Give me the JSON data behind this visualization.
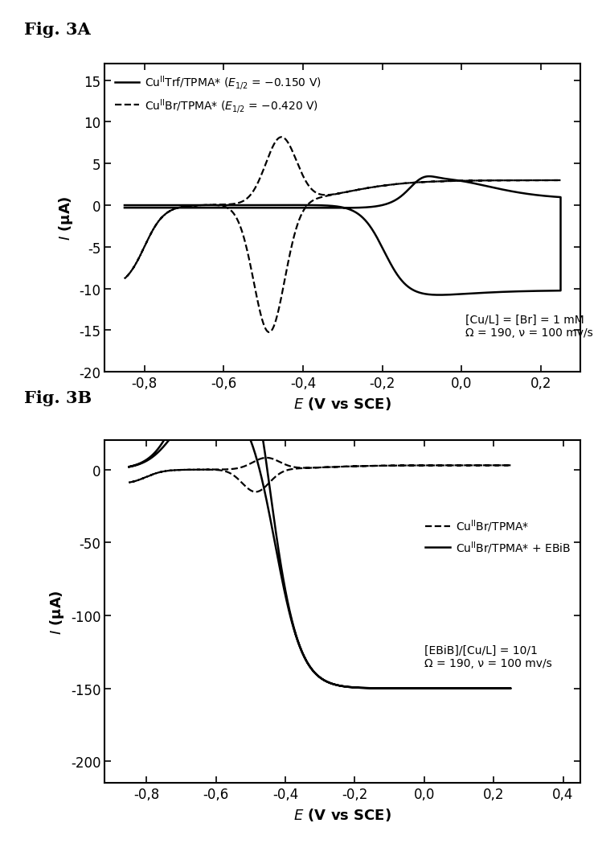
{
  "fig3A_label": "Fig. 3A",
  "fig3B_label": "Fig. 3B",
  "figA_xlabel": "E (V vs SCE)",
  "figA_ylabel": "I (μA)",
  "figB_xlabel": "E (V vs SCE)",
  "figB_ylabel": "I (μA)",
  "figA_xlim": [
    -0.9,
    0.3
  ],
  "figA_ylim": [
    -20,
    17
  ],
  "figB_xlim": [
    -0.92,
    0.45
  ],
  "figB_ylim": [
    -215,
    20
  ],
  "figA_xticks": [
    -0.8,
    -0.6,
    -0.4,
    -0.2,
    0.0,
    0.2
  ],
  "figA_yticks": [
    -20,
    -15,
    -10,
    -5,
    0,
    5,
    10,
    15
  ],
  "figB_xticks": [
    -0.8,
    -0.6,
    -0.4,
    -0.2,
    0.0,
    0.2,
    0.4
  ],
  "figB_yticks": [
    -200,
    -150,
    -100,
    -50,
    0
  ],
  "annotation_A": "[Cu/L] = [Br] = 1 mM\nΩ = 190, ν = 100 mv/s",
  "annotation_B": "[EBiB]/[Cu/L] = 10/1\nΩ = 190, ν = 100 mv/s"
}
